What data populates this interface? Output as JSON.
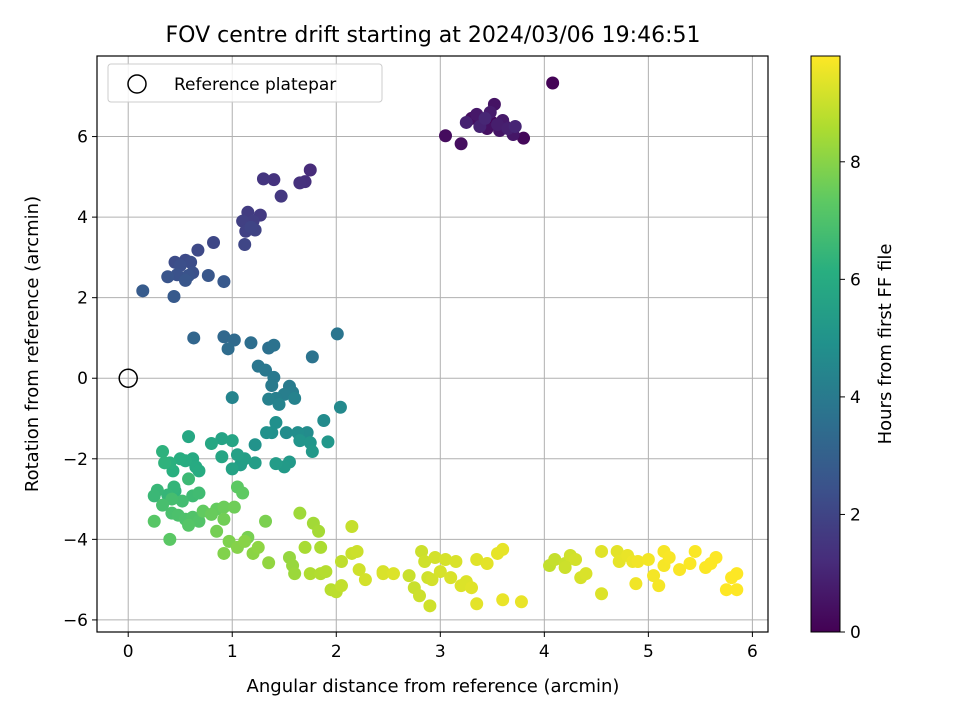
{
  "chart_data": {
    "type": "scatter",
    "title": "FOV centre drift starting at 2024/03/06 19:46:51",
    "xlabel": "Angular distance from reference (arcmin)",
    "ylabel": "Rotation from reference (arcmin)",
    "xlim": [
      -0.3,
      6.15
    ],
    "ylim": [
      -6.3,
      8.0
    ],
    "xticks": [
      "0",
      "1",
      "2",
      "3",
      "4",
      "5",
      "6"
    ],
    "yticks": [
      "−6",
      "−4",
      "−2",
      "0",
      "2",
      "4",
      "6"
    ],
    "grid": true,
    "legend": {
      "placement": "top-left",
      "label": "Reference platepar"
    },
    "reference_point": {
      "x": 0,
      "y": 0
    },
    "colorbar": {
      "label": "Hours from first FF file",
      "colormap": "viridis",
      "range": [
        0,
        9.8
      ],
      "ticks": [
        "0",
        "2",
        "4",
        "6",
        "8"
      ]
    },
    "points": [
      [
        4.08,
        7.33,
        0.05
      ],
      [
        3.62,
        6.26,
        0.1
      ],
      [
        3.5,
        6.35,
        0.15
      ],
      [
        3.8,
        5.96,
        0.2
      ],
      [
        3.4,
        6.3,
        0.25
      ],
      [
        3.05,
        6.02,
        0.3
      ],
      [
        3.2,
        5.82,
        0.35
      ],
      [
        3.3,
        6.45,
        0.4
      ],
      [
        3.45,
        6.2,
        0.45
      ],
      [
        3.52,
        6.8,
        0.5
      ],
      [
        3.57,
        6.15,
        0.55
      ],
      [
        3.7,
        6.05,
        0.6
      ],
      [
        3.35,
        6.55,
        0.65
      ],
      [
        3.6,
        6.4,
        0.7
      ],
      [
        3.48,
        6.6,
        0.75
      ],
      [
        3.55,
        6.3,
        0.8
      ],
      [
        3.65,
        6.2,
        0.85
      ],
      [
        3.25,
        6.35,
        0.9
      ],
      [
        3.38,
        6.25,
        0.95
      ],
      [
        3.72,
        6.25,
        1.0
      ],
      [
        3.43,
        6.45,
        1.05
      ],
      [
        1.75,
        5.17,
        1.2
      ],
      [
        1.7,
        4.88,
        1.28
      ],
      [
        1.65,
        4.85,
        1.35
      ],
      [
        1.4,
        4.93,
        1.42
      ],
      [
        1.3,
        4.95,
        1.5
      ],
      [
        1.47,
        4.52,
        1.58
      ],
      [
        1.27,
        4.05,
        1.65
      ],
      [
        1.15,
        4.12,
        1.72
      ],
      [
        1.2,
        3.9,
        1.78
      ],
      [
        1.1,
        3.9,
        1.85
      ],
      [
        1.13,
        3.65,
        1.9
      ],
      [
        1.22,
        3.68,
        1.95
      ],
      [
        1.18,
        3.75,
        2.0
      ],
      [
        1.12,
        3.32,
        2.05
      ],
      [
        0.82,
        3.37,
        2.1
      ],
      [
        0.67,
        3.18,
        2.15
      ],
      [
        0.55,
        2.93,
        2.2
      ],
      [
        0.45,
        2.88,
        2.25
      ],
      [
        0.6,
        2.88,
        2.3
      ],
      [
        0.5,
        2.8,
        2.35
      ],
      [
        0.62,
        2.62,
        2.4
      ],
      [
        0.47,
        2.57,
        2.45
      ],
      [
        0.58,
        2.55,
        2.5
      ],
      [
        0.38,
        2.52,
        2.55
      ],
      [
        0.55,
        2.43,
        2.6
      ],
      [
        0.77,
        2.55,
        2.65
      ],
      [
        0.92,
        2.4,
        2.7
      ],
      [
        0.44,
        2.03,
        2.75
      ],
      [
        0.14,
        2.17,
        2.8
      ],
      [
        0.63,
        1.0,
        3.2
      ],
      [
        0.92,
        1.03,
        3.3
      ],
      [
        1.02,
        0.95,
        3.38
      ],
      [
        0.96,
        0.73,
        3.45
      ],
      [
        1.18,
        0.88,
        3.52
      ],
      [
        1.35,
        0.75,
        3.6
      ],
      [
        1.4,
        0.82,
        3.66
      ],
      [
        1.77,
        0.53,
        3.72
      ],
      [
        2.01,
        1.1,
        3.78
      ],
      [
        1.25,
        0.3,
        3.85
      ],
      [
        1.32,
        0.2,
        3.9
      ],
      [
        1.4,
        0.02,
        3.95
      ],
      [
        1.38,
        -0.18,
        4.0
      ],
      [
        1.55,
        -0.2,
        4.05
      ],
      [
        1.58,
        -0.35,
        4.1
      ],
      [
        1.5,
        -0.4,
        4.15
      ],
      [
        1.42,
        -0.5,
        4.2
      ],
      [
        1.35,
        -0.52,
        4.25
      ],
      [
        1.6,
        -0.5,
        4.3
      ],
      [
        1.45,
        -0.65,
        4.35
      ],
      [
        1.0,
        -0.48,
        4.4
      ],
      [
        2.04,
        -0.72,
        4.6
      ],
      [
        1.88,
        -1.05,
        4.65
      ],
      [
        1.72,
        -1.35,
        4.7
      ],
      [
        1.52,
        -1.35,
        4.75
      ],
      [
        1.63,
        -1.35,
        4.8
      ],
      [
        1.42,
        -1.1,
        4.85
      ],
      [
        1.38,
        -1.35,
        4.9
      ],
      [
        1.33,
        -1.35,
        4.95
      ],
      [
        1.22,
        -1.65,
        5.0
      ],
      [
        1.65,
        -1.55,
        5.05
      ],
      [
        1.75,
        -1.6,
        5.1
      ],
      [
        1.92,
        -1.58,
        5.15
      ],
      [
        1.77,
        -1.82,
        5.2
      ],
      [
        1.55,
        -2.08,
        5.25
      ],
      [
        1.5,
        -2.2,
        5.3
      ],
      [
        1.42,
        -2.12,
        5.35
      ],
      [
        1.22,
        -2.1,
        5.4
      ],
      [
        1.08,
        -2.15,
        5.45
      ],
      [
        1.12,
        -2.0,
        5.5
      ],
      [
        1.05,
        -1.9,
        5.55
      ],
      [
        1.0,
        -2.25,
        5.6
      ],
      [
        0.9,
        -1.5,
        5.65
      ],
      [
        1.0,
        -1.55,
        5.7
      ],
      [
        0.9,
        -1.95,
        5.75
      ],
      [
        0.8,
        -1.62,
        5.8
      ],
      [
        0.58,
        -1.45,
        5.85
      ],
      [
        0.62,
        -2.0,
        5.9
      ],
      [
        0.65,
        -2.2,
        5.95
      ],
      [
        0.68,
        -2.3,
        6.0
      ],
      [
        0.55,
        -2.05,
        6.05
      ],
      [
        0.5,
        -2.0,
        6.1
      ],
      [
        0.43,
        -2.3,
        6.15
      ],
      [
        0.4,
        -2.1,
        6.2
      ],
      [
        0.33,
        -1.82,
        6.25
      ],
      [
        0.35,
        -2.1,
        6.3
      ],
      [
        0.45,
        -2.8,
        6.35
      ],
      [
        0.44,
        -2.7,
        6.4
      ],
      [
        0.38,
        -2.9,
        6.45
      ],
      [
        0.28,
        -2.78,
        6.5
      ],
      [
        0.25,
        -2.92,
        6.55
      ],
      [
        0.58,
        -2.5,
        6.6
      ],
      [
        0.62,
        -2.92,
        6.65
      ],
      [
        0.68,
        -2.85,
        6.7
      ],
      [
        0.52,
        -3.05,
        6.75
      ],
      [
        0.42,
        -3.0,
        6.8
      ],
      [
        0.33,
        -3.15,
        6.85
      ],
      [
        0.42,
        -3.35,
        6.9
      ],
      [
        0.48,
        -3.4,
        6.95
      ],
      [
        0.55,
        -3.5,
        7.0
      ],
      [
        0.62,
        -3.45,
        7.05
      ],
      [
        0.68,
        -3.55,
        7.1
      ],
      [
        0.58,
        -3.65,
        7.15
      ],
      [
        0.25,
        -3.55,
        7.2
      ],
      [
        0.4,
        -4.0,
        7.25
      ],
      [
        1.05,
        -2.7,
        7.3
      ],
      [
        1.1,
        -2.85,
        7.35
      ],
      [
        0.72,
        -3.3,
        7.4
      ],
      [
        0.85,
        -3.25,
        7.45
      ],
      [
        0.8,
        -3.38,
        7.5
      ],
      [
        0.92,
        -3.2,
        7.55
      ],
      [
        1.02,
        -3.2,
        7.6
      ],
      [
        0.92,
        -3.5,
        7.65
      ],
      [
        0.85,
        -3.8,
        7.7
      ],
      [
        1.15,
        -3.95,
        7.75
      ],
      [
        1.32,
        -3.55,
        7.8
      ],
      [
        0.97,
        -4.05,
        7.85
      ],
      [
        0.92,
        -4.35,
        7.9
      ],
      [
        1.05,
        -4.2,
        7.95
      ],
      [
        1.12,
        -4.05,
        8.0
      ],
      [
        1.2,
        -4.35,
        8.05
      ],
      [
        1.25,
        -4.2,
        8.1
      ],
      [
        1.35,
        -4.58,
        8.15
      ],
      [
        1.55,
        -4.45,
        8.2
      ],
      [
        1.58,
        -4.65,
        8.25
      ],
      [
        1.6,
        -4.85,
        8.3
      ],
      [
        1.65,
        -3.35,
        8.35
      ],
      [
        1.78,
        -3.6,
        8.4
      ],
      [
        1.83,
        -3.8,
        8.45
      ],
      [
        1.7,
        -4.2,
        8.5
      ],
      [
        1.85,
        -4.2,
        8.55
      ],
      [
        1.75,
        -4.85,
        8.6
      ],
      [
        1.85,
        -4.85,
        8.65
      ],
      [
        1.9,
        -4.8,
        8.7
      ],
      [
        1.95,
        -5.25,
        8.75
      ],
      [
        2.0,
        -5.3,
        8.8
      ],
      [
        2.05,
        -4.55,
        8.85
      ],
      [
        2.05,
        -5.15,
        8.9
      ],
      [
        2.15,
        -3.68,
        8.95
      ],
      [
        2.15,
        -4.35,
        9.0
      ],
      [
        2.2,
        -4.3,
        9.05
      ],
      [
        2.22,
        -4.75,
        9.1
      ],
      [
        2.28,
        -5.0,
        9.15
      ],
      [
        2.45,
        -4.8,
        9.2
      ],
      [
        2.45,
        -4.85,
        9.25
      ],
      [
        2.55,
        -4.85,
        9.3
      ],
      [
        2.7,
        -4.9,
        9.0
      ],
      [
        2.75,
        -5.2,
        9.0
      ],
      [
        2.8,
        -5.4,
        9.05
      ],
      [
        2.82,
        -4.3,
        9.05
      ],
      [
        2.85,
        -4.55,
        9.1
      ],
      [
        2.88,
        -4.95,
        9.1
      ],
      [
        2.9,
        -5.65,
        9.1
      ],
      [
        2.92,
        -5.0,
        9.15
      ],
      [
        2.95,
        -4.45,
        9.15
      ],
      [
        3.0,
        -4.8,
        9.2
      ],
      [
        3.05,
        -4.5,
        9.2
      ],
      [
        3.1,
        -4.95,
        9.25
      ],
      [
        3.15,
        -4.55,
        9.25
      ],
      [
        3.2,
        -5.15,
        9.3
      ],
      [
        3.25,
        -5.05,
        9.3
      ],
      [
        3.3,
        -5.2,
        9.35
      ],
      [
        3.35,
        -4.5,
        9.35
      ],
      [
        3.35,
        -5.6,
        9.4
      ],
      [
        3.45,
        -4.6,
        9.4
      ],
      [
        3.55,
        -4.35,
        9.45
      ],
      [
        3.6,
        -4.25,
        9.45
      ],
      [
        3.6,
        -5.5,
        9.5
      ],
      [
        3.78,
        -5.55,
        9.5
      ],
      [
        4.05,
        -4.65,
        8.9
      ],
      [
        4.1,
        -4.5,
        8.95
      ],
      [
        4.2,
        -4.6,
        9.0
      ],
      [
        4.2,
        -4.7,
        9.05
      ],
      [
        4.25,
        -4.4,
        9.1
      ],
      [
        4.3,
        -4.5,
        9.15
      ],
      [
        4.35,
        -4.95,
        9.2
      ],
      [
        4.4,
        -4.85,
        9.25
      ],
      [
        4.55,
        -5.35,
        9.3
      ],
      [
        4.55,
        -4.3,
        9.35
      ],
      [
        4.7,
        -4.3,
        9.4
      ],
      [
        4.72,
        -4.55,
        9.45
      ],
      [
        4.8,
        -4.4,
        9.5
      ],
      [
        4.85,
        -4.55,
        9.55
      ],
      [
        4.88,
        -5.1,
        9.6
      ],
      [
        4.9,
        -4.55,
        9.62
      ],
      [
        5.0,
        -4.5,
        9.65
      ],
      [
        5.05,
        -4.9,
        9.66
      ],
      [
        5.1,
        -5.15,
        9.68
      ],
      [
        5.15,
        -4.65,
        9.7
      ],
      [
        5.15,
        -4.3,
        9.7
      ],
      [
        5.2,
        -4.45,
        9.72
      ],
      [
        5.3,
        -4.75,
        9.74
      ],
      [
        5.4,
        -4.6,
        9.75
      ],
      [
        5.45,
        -4.3,
        9.76
      ],
      [
        5.55,
        -4.7,
        9.77
      ],
      [
        5.6,
        -4.6,
        9.78
      ],
      [
        5.65,
        -4.45,
        9.79
      ],
      [
        5.75,
        -5.25,
        9.8
      ],
      [
        5.8,
        -4.95,
        9.8
      ],
      [
        5.85,
        -5.25,
        9.8
      ],
      [
        5.85,
        -4.85,
        9.8
      ]
    ]
  }
}
